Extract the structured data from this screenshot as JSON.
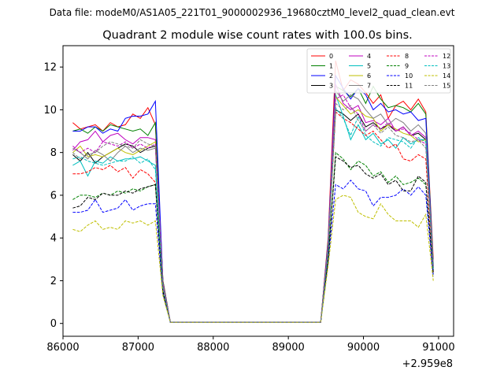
{
  "header": {
    "subtitle": "Data file: modeM0/AS1A05_221T01_9000002936_19680cztM0_level2_quad_clean.evt",
    "title": "Quadrant 2 module wise count rates with 100.0s bins."
  },
  "chart_data": {
    "type": "line",
    "title": "Quadrant 2 module wise count rates with 100.0s bins.",
    "xlabel": "",
    "ylabel": "",
    "x_offset_label": "+2.959e8",
    "xlim": [
      86000,
      91200
    ],
    "ylim": [
      -0.6,
      13.0
    ],
    "xticks": [
      86000,
      87000,
      88000,
      89000,
      90000,
      91000
    ],
    "xtick_labels": [
      "86000",
      "87000",
      "88000",
      "89000",
      "90000",
      "91000"
    ],
    "yticks": [
      0,
      2,
      4,
      6,
      8,
      10,
      12
    ],
    "ytick_labels": [
      "0",
      "2",
      "4",
      "6",
      "8",
      "10",
      "12"
    ],
    "grid": false,
    "legend_position": "top-right",
    "legend_columns": 4,
    "x": [
      86130,
      86230,
      86330,
      86430,
      86530,
      86630,
      86730,
      86830,
      86930,
      87030,
      87130,
      87230,
      87330,
      87430,
      87530,
      87630,
      87730,
      87830,
      87930,
      88030,
      88130,
      88230,
      88330,
      88430,
      88530,
      88630,
      88730,
      88830,
      88930,
      89030,
      89130,
      89230,
      89330,
      89430,
      89530,
      89630,
      89730,
      89830,
      89930,
      90030,
      90130,
      90230,
      90330,
      90430,
      90530,
      90630,
      90730,
      90830,
      90930
    ],
    "series": [
      {
        "name": "0",
        "color": "#ff0000",
        "dash": "solid",
        "values": [
          9.4,
          9.1,
          9.2,
          9.3,
          9.0,
          9.4,
          9.2,
          9.3,
          9.8,
          9.6,
          10.1,
          9.3,
          2.0,
          0.05,
          0.05,
          0.05,
          0.05,
          0.05,
          0.05,
          0.05,
          0.05,
          0.05,
          0.05,
          0.05,
          0.05,
          0.05,
          0.05,
          0.05,
          0.05,
          0.05,
          0.05,
          0.05,
          0.05,
          0.05,
          4.0,
          12.3,
          10.9,
          11.4,
          11.2,
          10.8,
          10.3,
          10.7,
          9.6,
          10.2,
          10.4,
          10.0,
          10.5,
          9.9,
          3.0
        ]
      },
      {
        "name": "1",
        "color": "#008000",
        "dash": "solid",
        "values": [
          9.0,
          9.1,
          8.9,
          9.2,
          9.0,
          9.3,
          9.2,
          9.1,
          9.0,
          9.1,
          8.8,
          9.4,
          2.0,
          0.05,
          0.05,
          0.05,
          0.05,
          0.05,
          0.05,
          0.05,
          0.05,
          0.05,
          0.05,
          0.05,
          0.05,
          0.05,
          0.05,
          0.05,
          0.05,
          0.05,
          0.05,
          0.05,
          0.05,
          0.05,
          3.9,
          11.1,
          10.9,
          10.6,
          11.0,
          10.3,
          11.1,
          10.5,
          10.1,
          10.2,
          10.1,
          9.9,
          10.3,
          9.8,
          2.8
        ]
      },
      {
        "name": "2",
        "color": "#0000ff",
        "dash": "solid",
        "values": [
          9.0,
          9.0,
          9.2,
          9.2,
          8.9,
          9.1,
          9.0,
          9.6,
          9.7,
          9.7,
          9.8,
          10.4,
          1.9,
          0.05,
          0.05,
          0.05,
          0.05,
          0.05,
          0.05,
          0.05,
          0.05,
          0.05,
          0.05,
          0.05,
          0.05,
          0.05,
          0.05,
          0.05,
          0.05,
          0.05,
          0.05,
          0.05,
          0.05,
          0.05,
          3.8,
          11.6,
          11.0,
          10.5,
          11.0,
          10.7,
          10.0,
          10.3,
          9.9,
          10.0,
          9.8,
          9.9,
          9.5,
          9.6,
          2.7
        ]
      },
      {
        "name": "3",
        "color": "#000000",
        "dash": "solid",
        "values": [
          7.9,
          7.6,
          8.0,
          7.5,
          7.8,
          8.0,
          8.2,
          8.4,
          8.3,
          8.0,
          8.2,
          8.3,
          1.8,
          0.05,
          0.05,
          0.05,
          0.05,
          0.05,
          0.05,
          0.05,
          0.05,
          0.05,
          0.05,
          0.05,
          0.05,
          0.05,
          0.05,
          0.05,
          0.05,
          0.05,
          0.05,
          0.05,
          0.05,
          0.05,
          3.5,
          10.0,
          9.8,
          9.5,
          9.8,
          9.2,
          9.4,
          9.1,
          9.3,
          9.0,
          9.2,
          8.8,
          8.9,
          8.6,
          2.6
        ]
      },
      {
        "name": "4",
        "color": "#bf00bf",
        "dash": "solid",
        "values": [
          8.1,
          8.5,
          8.6,
          9.0,
          8.5,
          8.8,
          8.9,
          8.6,
          8.4,
          8.7,
          8.7,
          8.6,
          1.9,
          0.05,
          0.05,
          0.05,
          0.05,
          0.05,
          0.05,
          0.05,
          0.05,
          0.05,
          0.05,
          0.05,
          0.05,
          0.05,
          0.05,
          0.05,
          0.05,
          0.05,
          0.05,
          0.05,
          0.05,
          0.05,
          3.7,
          11.2,
          10.3,
          10.0,
          10.2,
          9.4,
          9.5,
          9.3,
          9.6,
          9.0,
          9.2,
          8.8,
          9.0,
          8.7,
          2.7
        ]
      },
      {
        "name": "5",
        "color": "#00bfbf",
        "dash": "solid",
        "values": [
          7.4,
          7.6,
          6.9,
          7.6,
          7.5,
          7.8,
          7.6,
          7.7,
          7.7,
          7.8,
          7.6,
          7.4,
          1.7,
          0.05,
          0.05,
          0.05,
          0.05,
          0.05,
          0.05,
          0.05,
          0.05,
          0.05,
          0.05,
          0.05,
          0.05,
          0.05,
          0.05,
          0.05,
          0.05,
          0.05,
          0.05,
          0.05,
          0.05,
          0.05,
          3.5,
          10.7,
          9.7,
          8.6,
          9.3,
          8.6,
          8.9,
          8.4,
          8.6,
          8.2,
          8.7,
          8.4,
          8.6,
          8.6,
          2.5
        ]
      },
      {
        "name": "6",
        "color": "#bfbf00",
        "dash": "solid",
        "values": [
          8.0,
          8.3,
          7.8,
          7.9,
          7.8,
          8.0,
          8.2,
          8.0,
          7.9,
          8.1,
          8.3,
          8.5,
          1.8,
          0.05,
          0.05,
          0.05,
          0.05,
          0.05,
          0.05,
          0.05,
          0.05,
          0.05,
          0.05,
          0.05,
          0.05,
          0.05,
          0.05,
          0.05,
          0.05,
          0.05,
          0.05,
          0.05,
          0.05,
          0.05,
          3.6,
          10.6,
          10.2,
          9.8,
          10.0,
          9.7,
          9.6,
          9.0,
          9.3,
          9.1,
          8.9,
          8.8,
          8.5,
          8.6,
          2.6
        ]
      },
      {
        "name": "7",
        "color": "#808080",
        "dash": "solid",
        "values": [
          8.2,
          8.0,
          7.7,
          8.1,
          7.9,
          7.6,
          8.0,
          8.3,
          8.0,
          8.2,
          8.1,
          8.2,
          1.8,
          0.05,
          0.05,
          0.05,
          0.05,
          0.05,
          0.05,
          0.05,
          0.05,
          0.05,
          0.05,
          0.05,
          0.05,
          0.05,
          0.05,
          0.05,
          0.05,
          0.05,
          0.05,
          0.05,
          0.05,
          0.05,
          3.6,
          10.9,
          10.4,
          10.7,
          10.5,
          10.0,
          9.6,
          9.8,
          9.3,
          9.6,
          9.4,
          9.0,
          9.3,
          8.9,
          2.7
        ]
      },
      {
        "name": "8",
        "color": "#ff0000",
        "dash": "dashed",
        "values": [
          7.0,
          7.0,
          7.1,
          7.3,
          7.2,
          7.4,
          7.1,
          7.3,
          6.8,
          7.2,
          7.0,
          6.6,
          1.6,
          0.05,
          0.05,
          0.05,
          0.05,
          0.05,
          0.05,
          0.05,
          0.05,
          0.05,
          0.05,
          0.05,
          0.05,
          0.05,
          0.05,
          0.05,
          0.05,
          0.05,
          0.05,
          0.05,
          0.05,
          0.05,
          3.4,
          9.9,
          9.6,
          9.4,
          9.1,
          8.8,
          9.0,
          8.6,
          8.2,
          8.4,
          7.7,
          7.6,
          7.9,
          7.7,
          2.4
        ]
      },
      {
        "name": "9",
        "color": "#008000",
        "dash": "dashed",
        "values": [
          5.8,
          6.0,
          6.0,
          5.9,
          6.1,
          6.0,
          6.2,
          6.1,
          6.3,
          6.2,
          6.4,
          6.5,
          1.4,
          0.05,
          0.05,
          0.05,
          0.05,
          0.05,
          0.05,
          0.05,
          0.05,
          0.05,
          0.05,
          0.05,
          0.05,
          0.05,
          0.05,
          0.05,
          0.05,
          0.05,
          0.05,
          0.05,
          0.05,
          0.05,
          3.0,
          8.0,
          7.7,
          7.2,
          7.6,
          7.4,
          6.9,
          7.1,
          6.6,
          6.9,
          6.5,
          6.6,
          6.8,
          6.5,
          2.3
        ]
      },
      {
        "name": "10",
        "color": "#0000ff",
        "dash": "dashed",
        "values": [
          5.2,
          5.2,
          5.3,
          5.8,
          5.2,
          5.3,
          5.4,
          5.8,
          5.3,
          5.5,
          5.6,
          5.6,
          1.4,
          0.05,
          0.05,
          0.05,
          0.05,
          0.05,
          0.05,
          0.05,
          0.05,
          0.05,
          0.05,
          0.05,
          0.05,
          0.05,
          0.05,
          0.05,
          0.05,
          0.05,
          0.05,
          0.05,
          0.05,
          0.05,
          2.9,
          6.5,
          6.3,
          6.7,
          6.3,
          6.2,
          5.5,
          5.9,
          5.9,
          6.0,
          6.3,
          6.0,
          6.4,
          6.0,
          2.2
        ]
      },
      {
        "name": "11",
        "color": "#000000",
        "dash": "dashed",
        "values": [
          5.4,
          5.5,
          5.9,
          5.8,
          6.1,
          6.0,
          6.0,
          6.2,
          6.1,
          6.3,
          6.4,
          6.5,
          1.5,
          0.05,
          0.05,
          0.05,
          0.05,
          0.05,
          0.05,
          0.05,
          0.05,
          0.05,
          0.05,
          0.05,
          0.05,
          0.05,
          0.05,
          0.05,
          0.05,
          0.05,
          0.05,
          0.05,
          0.05,
          0.05,
          3.0,
          7.8,
          7.6,
          7.3,
          7.4,
          7.0,
          6.8,
          7.0,
          6.5,
          6.7,
          6.2,
          6.2,
          6.9,
          6.6,
          2.4
        ]
      },
      {
        "name": "12",
        "color": "#bf00bf",
        "dash": "dashed",
        "values": [
          8.3,
          8.0,
          8.2,
          8.0,
          8.5,
          8.4,
          8.3,
          8.5,
          8.2,
          8.4,
          8.2,
          8.4,
          1.8,
          0.05,
          0.05,
          0.05,
          0.05,
          0.05,
          0.05,
          0.05,
          0.05,
          0.05,
          0.05,
          0.05,
          0.05,
          0.05,
          0.05,
          0.05,
          0.05,
          0.05,
          0.05,
          0.05,
          0.05,
          0.05,
          3.7,
          10.5,
          10.7,
          10.1,
          9.8,
          9.0,
          9.3,
          9.1,
          9.4,
          9.0,
          9.1,
          8.9,
          8.6,
          8.4,
          2.6
        ]
      },
      {
        "name": "13",
        "color": "#00bfbf",
        "dash": "dashed",
        "values": [
          7.7,
          7.8,
          7.6,
          7.5,
          7.4,
          7.5,
          7.6,
          7.6,
          7.8,
          7.5,
          7.7,
          7.2,
          1.7,
          0.05,
          0.05,
          0.05,
          0.05,
          0.05,
          0.05,
          0.05,
          0.05,
          0.05,
          0.05,
          0.05,
          0.05,
          0.05,
          0.05,
          0.05,
          0.05,
          0.05,
          0.05,
          0.05,
          0.05,
          0.05,
          3.4,
          10.1,
          9.6,
          8.8,
          9.7,
          8.8,
          8.5,
          8.3,
          8.7,
          8.6,
          8.5,
          8.2,
          8.7,
          8.5,
          2.5
        ]
      },
      {
        "name": "14",
        "color": "#bfbf00",
        "dash": "dashed",
        "values": [
          4.4,
          4.3,
          4.6,
          4.8,
          4.4,
          4.5,
          4.4,
          4.8,
          4.7,
          4.8,
          4.6,
          4.8,
          1.3,
          0.05,
          0.05,
          0.05,
          0.05,
          0.05,
          0.05,
          0.05,
          0.05,
          0.05,
          0.05,
          0.05,
          0.05,
          0.05,
          0.05,
          0.05,
          0.05,
          0.05,
          0.05,
          0.05,
          0.05,
          0.05,
          2.7,
          5.8,
          6.0,
          5.9,
          5.2,
          5.0,
          4.9,
          5.6,
          5.1,
          4.8,
          4.8,
          4.8,
          4.5,
          5.1,
          2.0
        ]
      },
      {
        "name": "15",
        "color": "#808080",
        "dash": "dashed",
        "values": [
          8.0,
          7.7,
          7.9,
          8.0,
          8.3,
          8.5,
          8.4,
          8.3,
          8.2,
          8.6,
          8.4,
          8.3,
          1.8,
          0.05,
          0.05,
          0.05,
          0.05,
          0.05,
          0.05,
          0.05,
          0.05,
          0.05,
          0.05,
          0.05,
          0.05,
          0.05,
          0.05,
          0.05,
          0.05,
          0.05,
          0.05,
          0.05,
          0.05,
          0.05,
          3.6,
          10.3,
          10.0,
          10.2,
          9.5,
          9.0,
          9.3,
          8.9,
          9.2,
          8.8,
          8.7,
          8.5,
          8.6,
          8.2,
          2.6
        ]
      }
    ]
  }
}
